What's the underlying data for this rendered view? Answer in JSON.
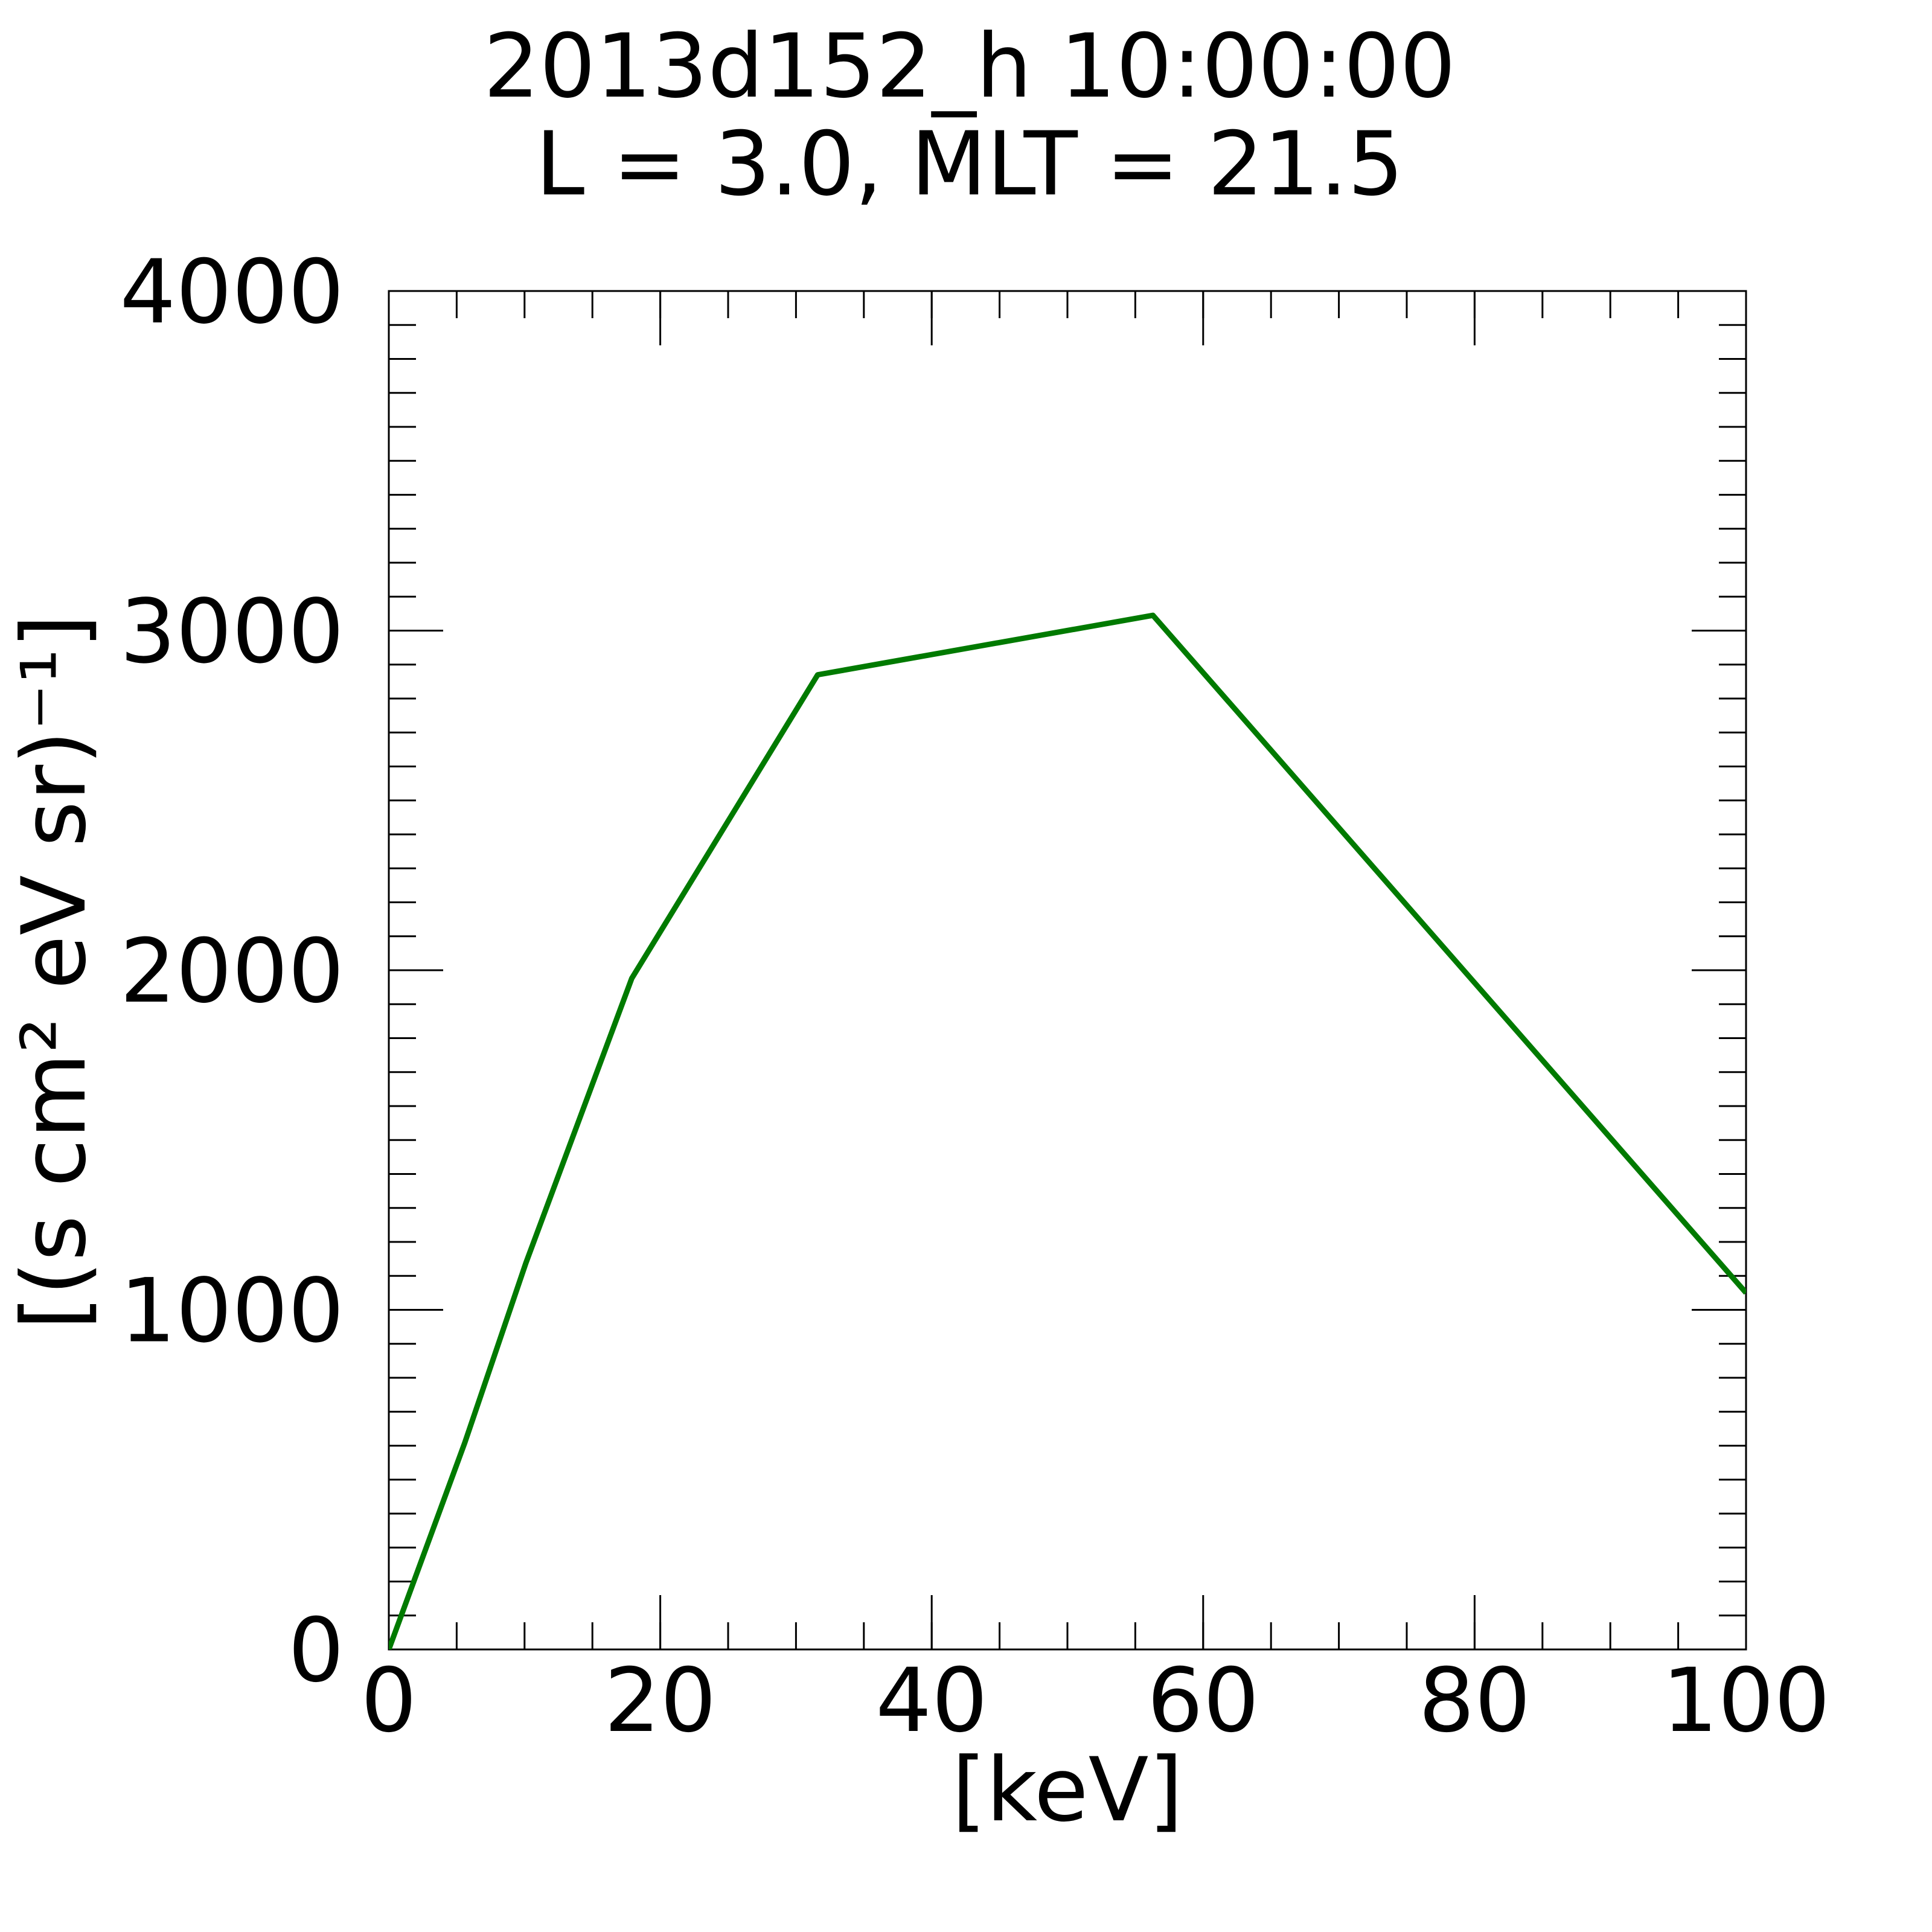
{
  "chart_data": {
    "type": "line",
    "title": "2013d152_h  10:00:00",
    "subtitle": "L = 3.0, MLT = 21.5",
    "xlabel": "[keV]",
    "ylabel": "[(s cm² eV sr)⁻¹]",
    "x": [
      0,
      5.6,
      10.1,
      17.9,
      31.6,
      56.3,
      100
    ],
    "series": [
      {
        "color": "#007a00",
        "values": [
          0,
          609,
          1138,
          1976,
          2870,
          3045,
          1050
        ]
      }
    ],
    "xlim": [
      0,
      100
    ],
    "xticks": [
      0,
      20,
      40,
      60,
      80,
      100
    ],
    "xminorticks": [
      0,
      5,
      10,
      15,
      20,
      25,
      30,
      35,
      40,
      45,
      50,
      55,
      60,
      65,
      70,
      75,
      80,
      85,
      90,
      95,
      100
    ],
    "ylim": [
      0,
      4000
    ],
    "yticks": [
      0,
      1000,
      2000,
      3000,
      4000
    ],
    "yminorticks": [
      0,
      100,
      200,
      300,
      400,
      500,
      600,
      700,
      800,
      900,
      1000,
      1100,
      1200,
      1300,
      1400,
      1500,
      1600,
      1700,
      1800,
      1900,
      2000,
      2100,
      2200,
      2300,
      2400,
      2500,
      2600,
      2700,
      2800,
      2900,
      3000,
      3100,
      3200,
      3300,
      3400,
      3500,
      3600,
      3700,
      3800,
      3900,
      4000
    ],
    "grid": false
  }
}
